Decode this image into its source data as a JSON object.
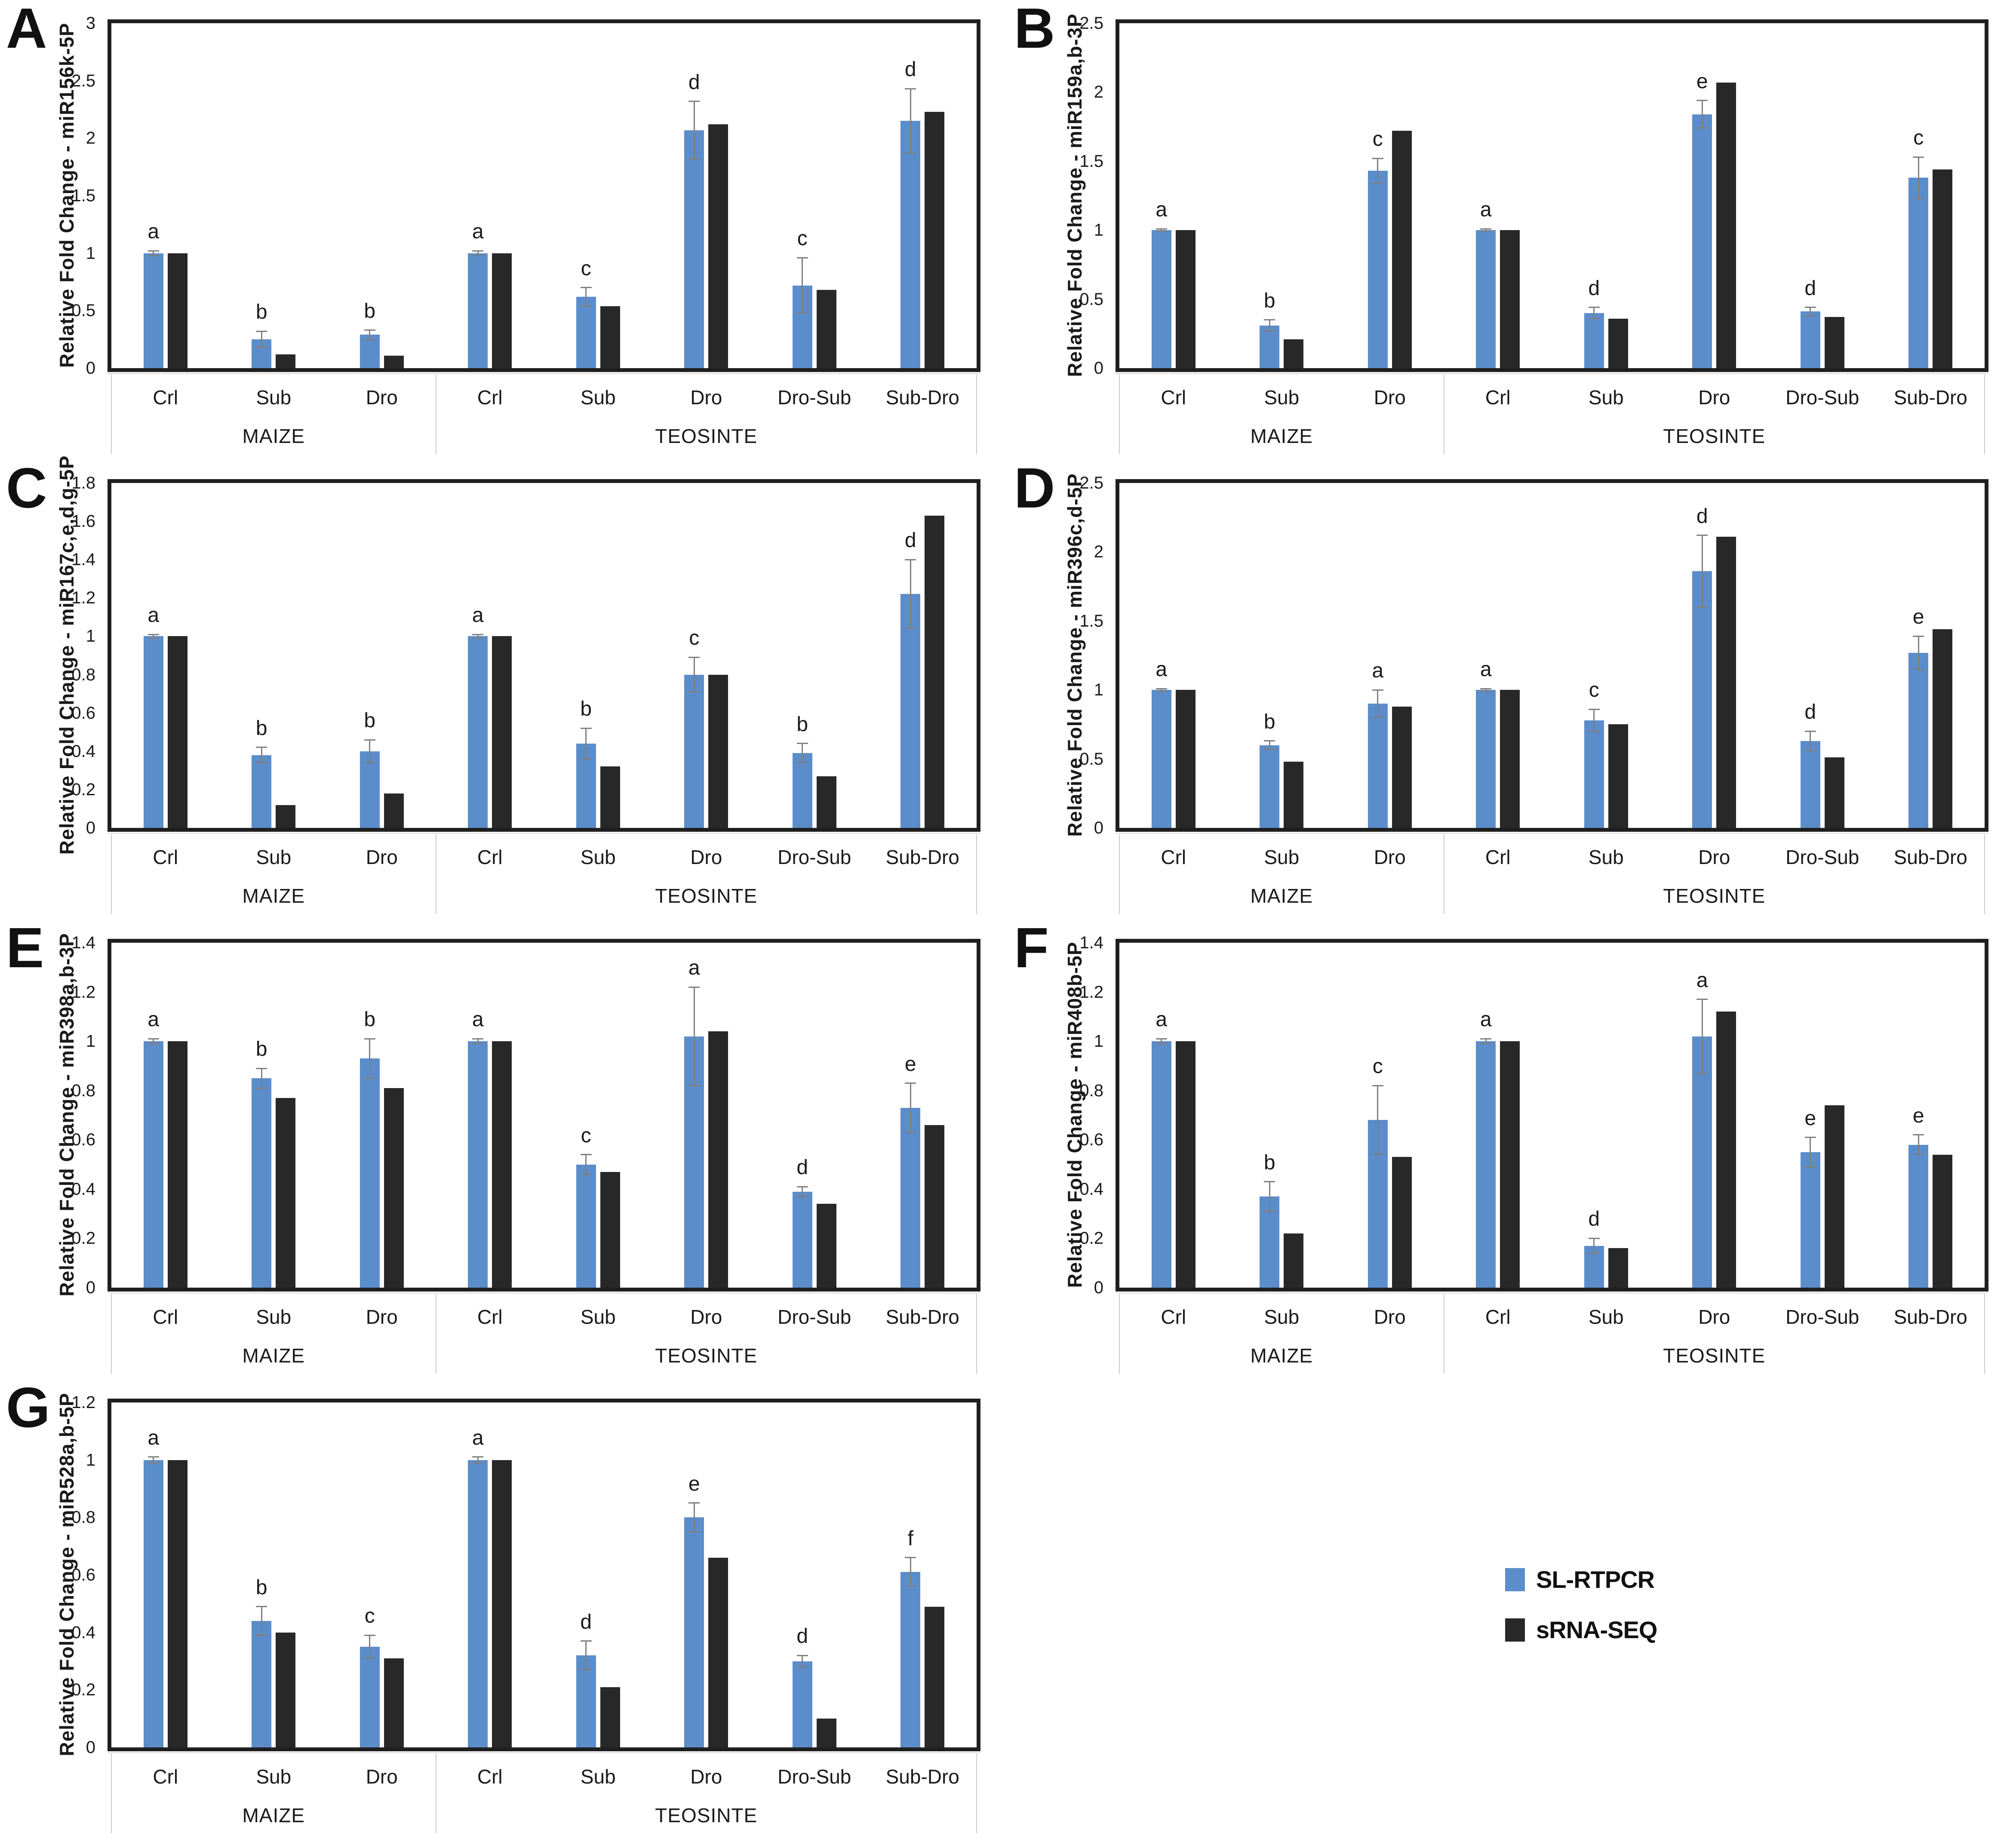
{
  "figure": {
    "description": "Seven-panel grouped bar figure comparing relative miRNA fold changes measured by SL-RTPCR vs sRNA-SEQ in maize and teosinte under control, submergence and drought stress conditions"
  },
  "legend": {
    "items": [
      {
        "label": "SL-RTPCR",
        "color": "#5B8DCB"
      },
      {
        "label": "sRNA-SEQ",
        "color": "#282828"
      }
    ]
  },
  "colors": {
    "sl_rtpcr": "#5B8DCB",
    "srna_seq": "#282828",
    "error_bar": "#7f7f7f",
    "plot_border": "#1f1f1f",
    "separator": "#c9c9c9"
  },
  "chart_data": [
    {
      "type": "bar",
      "panel_letter": "A",
      "title": "miR156k",
      "ylabel": "Relative Fold Change - miR156k-5P",
      "ylim": [
        0,
        3
      ],
      "yticks": [
        "0",
        "0.5",
        "1",
        "1.5",
        "2",
        "2.5",
        "3"
      ],
      "series": [
        "SL-RTPCR",
        "sRNA-SEQ"
      ],
      "groups": [
        {
          "label": "MAIZE",
          "categories": [
            "Crl",
            "Sub",
            "Dro"
          ]
        },
        {
          "label": "TEOSINTE",
          "categories": [
            "Crl",
            "Sub",
            "Dro",
            "Dro-Sub",
            "Sub-Dro"
          ]
        }
      ],
      "points": [
        {
          "group": "MAIZE",
          "category": "Crl",
          "sig": "a",
          "sl_rtpcr": 1.0,
          "srna_seq": 1.0,
          "err": 0.02
        },
        {
          "group": "MAIZE",
          "category": "Sub",
          "sig": "b",
          "sl_rtpcr": 0.25,
          "srna_seq": 0.12,
          "err": 0.07
        },
        {
          "group": "MAIZE",
          "category": "Dro",
          "sig": "b",
          "sl_rtpcr": 0.29,
          "srna_seq": 0.11,
          "err": 0.04
        },
        {
          "group": "TEOSINTE",
          "category": "Crl",
          "sig": "a",
          "sl_rtpcr": 1.0,
          "srna_seq": 1.0,
          "err": 0.02
        },
        {
          "group": "TEOSINTE",
          "category": "Sub",
          "sig": "c",
          "sl_rtpcr": 0.62,
          "srna_seq": 0.54,
          "err": 0.08
        },
        {
          "group": "TEOSINTE",
          "category": "Dro",
          "sig": "d",
          "sl_rtpcr": 2.07,
          "srna_seq": 2.12,
          "err": 0.25
        },
        {
          "group": "TEOSINTE",
          "category": "Dro-Sub",
          "sig": "c",
          "sl_rtpcr": 0.72,
          "srna_seq": 0.68,
          "err": 0.24
        },
        {
          "group": "TEOSINTE",
          "category": "Sub-Dro",
          "sig": "d",
          "sl_rtpcr": 2.15,
          "srna_seq": 2.23,
          "err": 0.28
        }
      ]
    },
    {
      "type": "bar",
      "panel_letter": "B",
      "title": "miR159ab",
      "ylabel": "Relative Fold Change - miR159a,b-3P",
      "ylim": [
        0,
        2.5
      ],
      "yticks": [
        "0",
        "0.5",
        "1",
        "1.5",
        "2",
        "2.5"
      ],
      "series": [
        "SL-RTPCR",
        "sRNA-SEQ"
      ],
      "groups": [
        {
          "label": "MAIZE",
          "categories": [
            "Crl",
            "Sub",
            "Dro"
          ]
        },
        {
          "label": "TEOSINTE",
          "categories": [
            "Crl",
            "Sub",
            "Dro",
            "Dro-Sub",
            "Sub-Dro"
          ]
        }
      ],
      "points": [
        {
          "group": "MAIZE",
          "category": "Crl",
          "sig": "a",
          "sl_rtpcr": 1.0,
          "srna_seq": 1.0,
          "err": 0.01
        },
        {
          "group": "MAIZE",
          "category": "Sub",
          "sig": "b",
          "sl_rtpcr": 0.31,
          "srna_seq": 0.21,
          "err": 0.04
        },
        {
          "group": "MAIZE",
          "category": "Dro",
          "sig": "c",
          "sl_rtpcr": 1.43,
          "srna_seq": 1.72,
          "err": 0.09
        },
        {
          "group": "TEOSINTE",
          "category": "Crl",
          "sig": "a",
          "sl_rtpcr": 1.0,
          "srna_seq": 1.0,
          "err": 0.01
        },
        {
          "group": "TEOSINTE",
          "category": "Sub",
          "sig": "d",
          "sl_rtpcr": 0.4,
          "srna_seq": 0.36,
          "err": 0.04
        },
        {
          "group": "TEOSINTE",
          "category": "Dro",
          "sig": "e",
          "sl_rtpcr": 1.84,
          "srna_seq": 2.07,
          "err": 0.1
        },
        {
          "group": "TEOSINTE",
          "category": "Dro-Sub",
          "sig": "d",
          "sl_rtpcr": 0.41,
          "srna_seq": 0.37,
          "err": 0.03
        },
        {
          "group": "TEOSINTE",
          "category": "Sub-Dro",
          "sig": "c",
          "sl_rtpcr": 1.38,
          "srna_seq": 1.44,
          "err": 0.15
        }
      ]
    },
    {
      "type": "bar",
      "panel_letter": "C",
      "title": "miR167cdeg",
      "ylabel": "Relative Fold Change - miR167c,e,d,g-5P",
      "ylim": [
        0,
        1.8
      ],
      "yticks": [
        "0",
        "0.2",
        "0.4",
        "0.6",
        "0.8",
        "1",
        "1.2",
        "1.4",
        "1.6",
        "1.8"
      ],
      "series": [
        "SL-RTPCR",
        "sRNA-SEQ"
      ],
      "groups": [
        {
          "label": "MAIZE",
          "categories": [
            "Crl",
            "Sub",
            "Dro"
          ]
        },
        {
          "label": "TEOSINTE",
          "categories": [
            "Crl",
            "Sub",
            "Dro",
            "Dro-Sub",
            "Sub-Dro"
          ]
        }
      ],
      "points": [
        {
          "group": "MAIZE",
          "category": "Crl",
          "sig": "a",
          "sl_rtpcr": 1.0,
          "srna_seq": 1.0,
          "err": 0.01
        },
        {
          "group": "MAIZE",
          "category": "Sub",
          "sig": "b",
          "sl_rtpcr": 0.38,
          "srna_seq": 0.12,
          "err": 0.04
        },
        {
          "group": "MAIZE",
          "category": "Dro",
          "sig": "b",
          "sl_rtpcr": 0.4,
          "srna_seq": 0.18,
          "err": 0.06
        },
        {
          "group": "TEOSINTE",
          "category": "Crl",
          "sig": "a",
          "sl_rtpcr": 1.0,
          "srna_seq": 1.0,
          "err": 0.01
        },
        {
          "group": "TEOSINTE",
          "category": "Sub",
          "sig": "b",
          "sl_rtpcr": 0.44,
          "srna_seq": 0.32,
          "err": 0.08
        },
        {
          "group": "TEOSINTE",
          "category": "Dro",
          "sig": "c",
          "sl_rtpcr": 0.8,
          "srna_seq": 0.8,
          "err": 0.09
        },
        {
          "group": "TEOSINTE",
          "category": "Dro-Sub",
          "sig": "b",
          "sl_rtpcr": 0.39,
          "srna_seq": 0.27,
          "err": 0.05
        },
        {
          "group": "TEOSINTE",
          "category": "Sub-Dro",
          "sig": "d",
          "sl_rtpcr": 1.22,
          "srna_seq": 1.63,
          "err": 0.18
        }
      ]
    },
    {
      "type": "bar",
      "panel_letter": "D",
      "title": "miR396cd",
      "ylabel": "Relative Fold Change - miR396c,d-5P",
      "ylim": [
        0,
        2.5
      ],
      "yticks": [
        "0",
        "0.5",
        "1",
        "1.5",
        "2",
        "2.5"
      ],
      "series": [
        "SL-RTPCR",
        "sRNA-SEQ"
      ],
      "groups": [
        {
          "label": "MAIZE",
          "categories": [
            "Crl",
            "Sub",
            "Dro"
          ]
        },
        {
          "label": "TEOSINTE",
          "categories": [
            "Crl",
            "Sub",
            "Dro",
            "Dro-Sub",
            "Sub-Dro"
          ]
        }
      ],
      "points": [
        {
          "group": "MAIZE",
          "category": "Crl",
          "sig": "a",
          "sl_rtpcr": 1.0,
          "srna_seq": 1.0,
          "err": 0.01
        },
        {
          "group": "MAIZE",
          "category": "Sub",
          "sig": "b",
          "sl_rtpcr": 0.6,
          "srna_seq": 0.48,
          "err": 0.03
        },
        {
          "group": "MAIZE",
          "category": "Dro",
          "sig": "a",
          "sl_rtpcr": 0.9,
          "srna_seq": 0.88,
          "err": 0.1
        },
        {
          "group": "TEOSINTE",
          "category": "Crl",
          "sig": "a",
          "sl_rtpcr": 1.0,
          "srna_seq": 1.0,
          "err": 0.01
        },
        {
          "group": "TEOSINTE",
          "category": "Sub",
          "sig": "c",
          "sl_rtpcr": 0.78,
          "srna_seq": 0.75,
          "err": 0.08
        },
        {
          "group": "TEOSINTE",
          "category": "Dro",
          "sig": "d",
          "sl_rtpcr": 1.86,
          "srna_seq": 2.11,
          "err": 0.26
        },
        {
          "group": "TEOSINTE",
          "category": "Dro-Sub",
          "sig": "d",
          "sl_rtpcr": 0.63,
          "srna_seq": 0.51,
          "err": 0.07
        },
        {
          "group": "TEOSINTE",
          "category": "Sub-Dro",
          "sig": "e",
          "sl_rtpcr": 1.27,
          "srna_seq": 1.44,
          "err": 0.12
        }
      ]
    },
    {
      "type": "bar",
      "panel_letter": "E",
      "title": "miR398ab",
      "ylabel": "Relative Fold Change - miR398a,b-3P",
      "ylim": [
        0,
        1.4
      ],
      "yticks": [
        "0",
        "0.2",
        "0.4",
        "0.6",
        "0.8",
        "1",
        "1.2",
        "1.4"
      ],
      "series": [
        "SL-RTPCR",
        "sRNA-SEQ"
      ],
      "groups": [
        {
          "label": "MAIZE",
          "categories": [
            "Crl",
            "Sub",
            "Dro"
          ]
        },
        {
          "label": "TEOSINTE",
          "categories": [
            "Crl",
            "Sub",
            "Dro",
            "Dro-Sub",
            "Sub-Dro"
          ]
        }
      ],
      "points": [
        {
          "group": "MAIZE",
          "category": "Crl",
          "sig": "a",
          "sl_rtpcr": 1.0,
          "srna_seq": 1.0,
          "err": 0.01
        },
        {
          "group": "MAIZE",
          "category": "Sub",
          "sig": "b",
          "sl_rtpcr": 0.85,
          "srna_seq": 0.77,
          "err": 0.04
        },
        {
          "group": "MAIZE",
          "category": "Dro",
          "sig": "b",
          "sl_rtpcr": 0.93,
          "srna_seq": 0.81,
          "err": 0.08
        },
        {
          "group": "TEOSINTE",
          "category": "Crl",
          "sig": "a",
          "sl_rtpcr": 1.0,
          "srna_seq": 1.0,
          "err": 0.01
        },
        {
          "group": "TEOSINTE",
          "category": "Sub",
          "sig": "c",
          "sl_rtpcr": 0.5,
          "srna_seq": 0.47,
          "err": 0.04
        },
        {
          "group": "TEOSINTE",
          "category": "Dro",
          "sig": "a",
          "sl_rtpcr": 1.02,
          "srna_seq": 1.04,
          "err": 0.2
        },
        {
          "group": "TEOSINTE",
          "category": "Dro-Sub",
          "sig": "d",
          "sl_rtpcr": 0.39,
          "srna_seq": 0.34,
          "err": 0.02
        },
        {
          "group": "TEOSINTE",
          "category": "Sub-Dro",
          "sig": "e",
          "sl_rtpcr": 0.73,
          "srna_seq": 0.66,
          "err": 0.1
        }
      ]
    },
    {
      "type": "bar",
      "panel_letter": "F",
      "title": "miR408b",
      "ylabel": "Relative Fold Change - miR408b-5P",
      "ylim": [
        0,
        1.4
      ],
      "yticks": [
        "0",
        "0.2",
        "0.4",
        "0.6",
        "0.8",
        "1",
        "1.2",
        "1.4"
      ],
      "series": [
        "SL-RTPCR",
        "sRNA-SEQ"
      ],
      "groups": [
        {
          "label": "MAIZE",
          "categories": [
            "Crl",
            "Sub",
            "Dro"
          ]
        },
        {
          "label": "TEOSINTE",
          "categories": [
            "Crl",
            "Sub",
            "Dro",
            "Dro-Sub",
            "Sub-Dro"
          ]
        }
      ],
      "points": [
        {
          "group": "MAIZE",
          "category": "Crl",
          "sig": "a",
          "sl_rtpcr": 1.0,
          "srna_seq": 1.0,
          "err": 0.01
        },
        {
          "group": "MAIZE",
          "category": "Sub",
          "sig": "b",
          "sl_rtpcr": 0.37,
          "srna_seq": 0.22,
          "err": 0.06
        },
        {
          "group": "MAIZE",
          "category": "Dro",
          "sig": "c",
          "sl_rtpcr": 0.68,
          "srna_seq": 0.53,
          "err": 0.14
        },
        {
          "group": "TEOSINTE",
          "category": "Crl",
          "sig": "a",
          "sl_rtpcr": 1.0,
          "srna_seq": 1.0,
          "err": 0.01
        },
        {
          "group": "TEOSINTE",
          "category": "Sub",
          "sig": "d",
          "sl_rtpcr": 0.17,
          "srna_seq": 0.16,
          "err": 0.03
        },
        {
          "group": "TEOSINTE",
          "category": "Dro",
          "sig": "a",
          "sl_rtpcr": 1.02,
          "srna_seq": 1.12,
          "err": 0.15
        },
        {
          "group": "TEOSINTE",
          "category": "Dro-Sub",
          "sig": "e",
          "sl_rtpcr": 0.55,
          "srna_seq": 0.74,
          "err": 0.06
        },
        {
          "group": "TEOSINTE",
          "category": "Sub-Dro",
          "sig": "e",
          "sl_rtpcr": 0.58,
          "srna_seq": 0.54,
          "err": 0.04
        }
      ]
    },
    {
      "type": "bar",
      "panel_letter": "G",
      "title": "miR528ab",
      "ylabel": "Relative Fold Change - miR528a,b-5P",
      "ylim": [
        0,
        1.2
      ],
      "yticks": [
        "0",
        "0.2",
        "0.4",
        "0.6",
        "0.8",
        "1",
        "1.2"
      ],
      "series": [
        "SL-RTPCR",
        "sRNA-SEQ"
      ],
      "groups": [
        {
          "label": "MAIZE",
          "categories": [
            "Crl",
            "Sub",
            "Dro"
          ]
        },
        {
          "label": "TEOSINTE",
          "categories": [
            "Crl",
            "Sub",
            "Dro",
            "Dro-Sub",
            "Sub-Dro"
          ]
        }
      ],
      "points": [
        {
          "group": "MAIZE",
          "category": "Crl",
          "sig": "a",
          "sl_rtpcr": 1.0,
          "srna_seq": 1.0,
          "err": 0.01
        },
        {
          "group": "MAIZE",
          "category": "Sub",
          "sig": "b",
          "sl_rtpcr": 0.44,
          "srna_seq": 0.4,
          "err": 0.05
        },
        {
          "group": "MAIZE",
          "category": "Dro",
          "sig": "c",
          "sl_rtpcr": 0.35,
          "srna_seq": 0.31,
          "err": 0.04
        },
        {
          "group": "TEOSINTE",
          "category": "Crl",
          "sig": "a",
          "sl_rtpcr": 1.0,
          "srna_seq": 1.0,
          "err": 0.01
        },
        {
          "group": "TEOSINTE",
          "category": "Sub",
          "sig": "d",
          "sl_rtpcr": 0.32,
          "srna_seq": 0.21,
          "err": 0.05
        },
        {
          "group": "TEOSINTE",
          "category": "Dro",
          "sig": "e",
          "sl_rtpcr": 0.8,
          "srna_seq": 0.66,
          "err": 0.05
        },
        {
          "group": "TEOSINTE",
          "category": "Dro-Sub",
          "sig": "d",
          "sl_rtpcr": 0.3,
          "srna_seq": 0.1,
          "err": 0.02
        },
        {
          "group": "TEOSINTE",
          "category": "Sub-Dro",
          "sig": "f",
          "sl_rtpcr": 0.61,
          "srna_seq": 0.49,
          "err": 0.05
        }
      ]
    }
  ]
}
